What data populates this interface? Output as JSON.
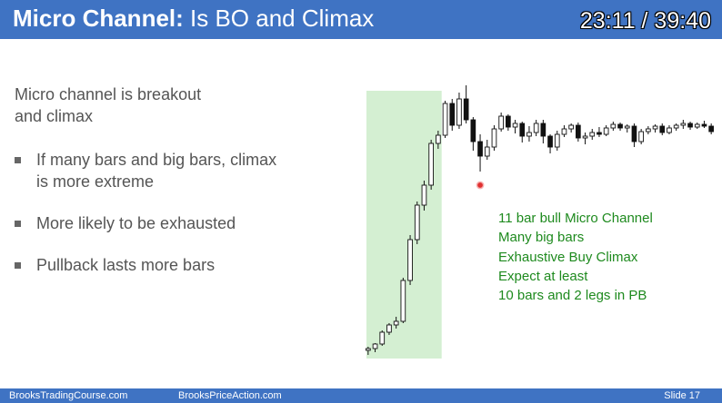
{
  "header": {
    "title_bold": "Micro Channel:",
    "title_rest": " Is BO and Climax",
    "timer": "23:11 / 39:40"
  },
  "body": {
    "lead": "Micro channel is breakout and climax",
    "bullets": [
      "If many bars and big bars, climax is more extreme",
      "More likely to be exhausted",
      "Pullback lasts more bars"
    ]
  },
  "chart_note": [
    "11 bar bull Micro Channel",
    "Many big bars",
    "Exhaustive Buy Climax",
    "Expect at least",
    "10 bars and 2 legs in PB"
  ],
  "footer": {
    "left": "BrooksTradingCourse.com",
    "center": "BrooksPriceAction.com",
    "slide": "Slide  17"
  },
  "colors": {
    "header_bg": "#3f73c3",
    "note_green": "#1e8a1e",
    "highlight": "#d4efd2",
    "bear_body": "#111111",
    "pointer_red": "#e03030"
  },
  "chart_data": {
    "type": "candlestick",
    "highlight_bars": [
      0,
      10
    ],
    "bars": [
      {
        "o": 8,
        "h": 12,
        "l": 3,
        "c": 10
      },
      {
        "o": 10,
        "h": 16,
        "l": 6,
        "c": 15
      },
      {
        "o": 15,
        "h": 30,
        "l": 13,
        "c": 28
      },
      {
        "o": 28,
        "h": 38,
        "l": 25,
        "c": 36
      },
      {
        "o": 36,
        "h": 45,
        "l": 32,
        "c": 40
      },
      {
        "o": 40,
        "h": 88,
        "l": 38,
        "c": 85
      },
      {
        "o": 85,
        "h": 135,
        "l": 80,
        "c": 130
      },
      {
        "o": 130,
        "h": 172,
        "l": 125,
        "c": 168
      },
      {
        "o": 168,
        "h": 195,
        "l": 162,
        "c": 190
      },
      {
        "o": 190,
        "h": 240,
        "l": 185,
        "c": 236
      },
      {
        "o": 236,
        "h": 250,
        "l": 230,
        "c": 245
      },
      {
        "o": 245,
        "h": 283,
        "l": 242,
        "c": 280
      },
      {
        "o": 280,
        "h": 285,
        "l": 250,
        "c": 256
      },
      {
        "o": 256,
        "h": 292,
        "l": 252,
        "c": 285
      },
      {
        "o": 285,
        "h": 300,
        "l": 258,
        "c": 262
      },
      {
        "o": 262,
        "h": 265,
        "l": 228,
        "c": 238
      },
      {
        "o": 238,
        "h": 246,
        "l": 205,
        "c": 222
      },
      {
        "o": 222,
        "h": 240,
        "l": 218,
        "c": 232
      },
      {
        "o": 232,
        "h": 256,
        "l": 228,
        "c": 252
      },
      {
        "o": 252,
        "h": 270,
        "l": 249,
        "c": 266
      },
      {
        "o": 266,
        "h": 268,
        "l": 250,
        "c": 254
      },
      {
        "o": 254,
        "h": 262,
        "l": 247,
        "c": 258
      },
      {
        "o": 258,
        "h": 260,
        "l": 237,
        "c": 244
      },
      {
        "o": 244,
        "h": 255,
        "l": 238,
        "c": 248
      },
      {
        "o": 248,
        "h": 262,
        "l": 244,
        "c": 258
      },
      {
        "o": 258,
        "h": 262,
        "l": 236,
        "c": 244
      },
      {
        "o": 244,
        "h": 246,
        "l": 225,
        "c": 232
      },
      {
        "o": 232,
        "h": 250,
        "l": 228,
        "c": 246
      },
      {
        "o": 246,
        "h": 256,
        "l": 243,
        "c": 252
      },
      {
        "o": 252,
        "h": 258,
        "l": 248,
        "c": 256
      },
      {
        "o": 256,
        "h": 259,
        "l": 238,
        "c": 242
      },
      {
        "o": 242,
        "h": 248,
        "l": 235,
        "c": 244
      },
      {
        "o": 244,
        "h": 252,
        "l": 240,
        "c": 248
      },
      {
        "o": 248,
        "h": 254,
        "l": 243,
        "c": 246
      },
      {
        "o": 246,
        "h": 256,
        "l": 244,
        "c": 253
      },
      {
        "o": 253,
        "h": 260,
        "l": 250,
        "c": 257
      },
      {
        "o": 257,
        "h": 259,
        "l": 250,
        "c": 253
      },
      {
        "o": 253,
        "h": 257,
        "l": 248,
        "c": 255
      },
      {
        "o": 255,
        "h": 258,
        "l": 232,
        "c": 238
      },
      {
        "o": 238,
        "h": 252,
        "l": 235,
        "c": 249
      },
      {
        "o": 249,
        "h": 255,
        "l": 246,
        "c": 252
      },
      {
        "o": 252,
        "h": 257,
        "l": 248,
        "c": 255
      },
      {
        "o": 255,
        "h": 258,
        "l": 245,
        "c": 248
      },
      {
        "o": 248,
        "h": 256,
        "l": 246,
        "c": 253
      },
      {
        "o": 253,
        "h": 258,
        "l": 250,
        "c": 256
      },
      {
        "o": 256,
        "h": 262,
        "l": 252,
        "c": 258
      },
      {
        "o": 258,
        "h": 260,
        "l": 251,
        "c": 254
      },
      {
        "o": 254,
        "h": 259,
        "l": 252,
        "c": 257
      },
      {
        "o": 257,
        "h": 261,
        "l": 253,
        "c": 255
      },
      {
        "o": 255,
        "h": 258,
        "l": 246,
        "c": 249
      }
    ],
    "pointer": {
      "bar": 16,
      "price": 190
    }
  }
}
